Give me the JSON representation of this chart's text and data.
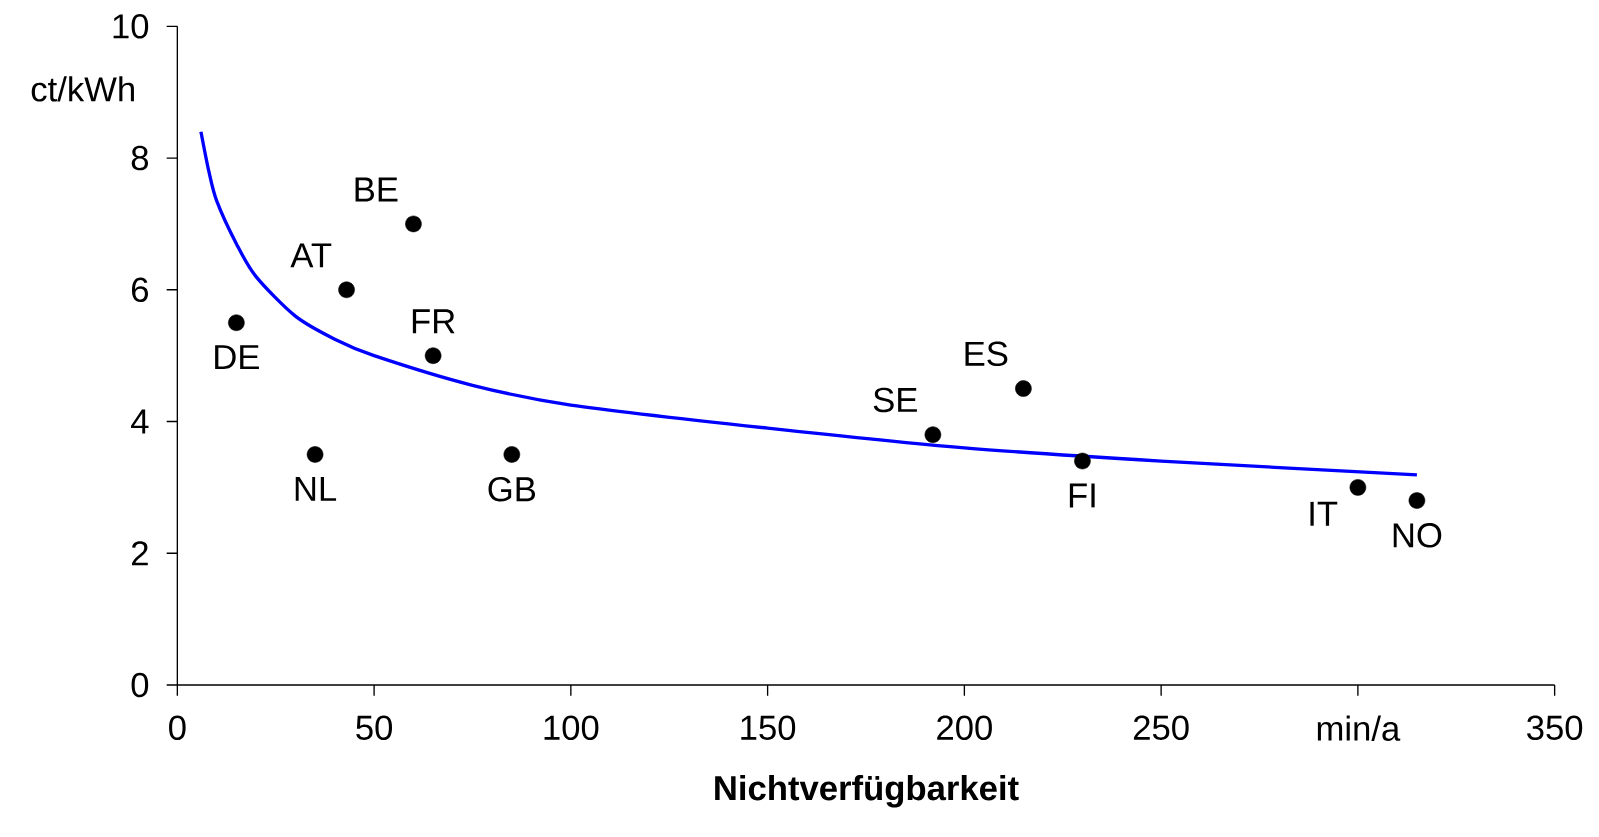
{
  "chart_data": {
    "type": "scatter",
    "xlabel": "Nichtverfügbarkeit",
    "ylabel": "ct/kWh",
    "xlim": [
      0,
      350
    ],
    "ylim": [
      0,
      10
    ],
    "xticks": [
      0,
      50,
      100,
      150,
      200,
      250,
      {
        "value": 300,
        "label": "min/a"
      },
      350
    ],
    "yticks": [
      0,
      2,
      4,
      6,
      8,
      10
    ],
    "grid": false,
    "series": [
      {
        "color": "#000000",
        "marker": "circle",
        "x": [
          15,
          35,
          43,
          60,
          65,
          85,
          192,
          215,
          230,
          300,
          315
        ],
        "values": [
          5.5,
          3.5,
          6.0,
          7.0,
          5.0,
          3.5,
          3.8,
          4.5,
          3.4,
          3.0,
          2.8
        ]
      },
      {
        "type": "line",
        "color": "#0000ff",
        "marker": "none",
        "x": [
          6,
          8,
          10,
          15,
          20,
          30,
          40,
          50,
          75,
          100,
          150,
          200,
          250,
          315
        ],
        "values": [
          8.4,
          7.8,
          7.35,
          6.7,
          6.2,
          5.6,
          5.25,
          5.0,
          4.55,
          4.25,
          3.9,
          3.6,
          3.4,
          3.19
        ]
      }
    ],
    "annotations": [
      {
        "text": "DE",
        "x": 15,
        "y": 5.5
      },
      {
        "text": "NL",
        "x": 35,
        "y": 3.5
      },
      {
        "text": "AT",
        "x": 43,
        "y": 6.0
      },
      {
        "text": "BE",
        "x": 60,
        "y": 7.0
      },
      {
        "text": "FR",
        "x": 65,
        "y": 5.0
      },
      {
        "text": "GB",
        "x": 85,
        "y": 3.5
      },
      {
        "text": "SE",
        "x": 192,
        "y": 3.8
      },
      {
        "text": "ES",
        "x": 215,
        "y": 4.5
      },
      {
        "text": "FI",
        "x": 230,
        "y": 3.4
      },
      {
        "text": "IT",
        "x": 300,
        "y": 3.0
      },
      {
        "text": "NO",
        "x": 315,
        "y": 2.8
      }
    ]
  }
}
